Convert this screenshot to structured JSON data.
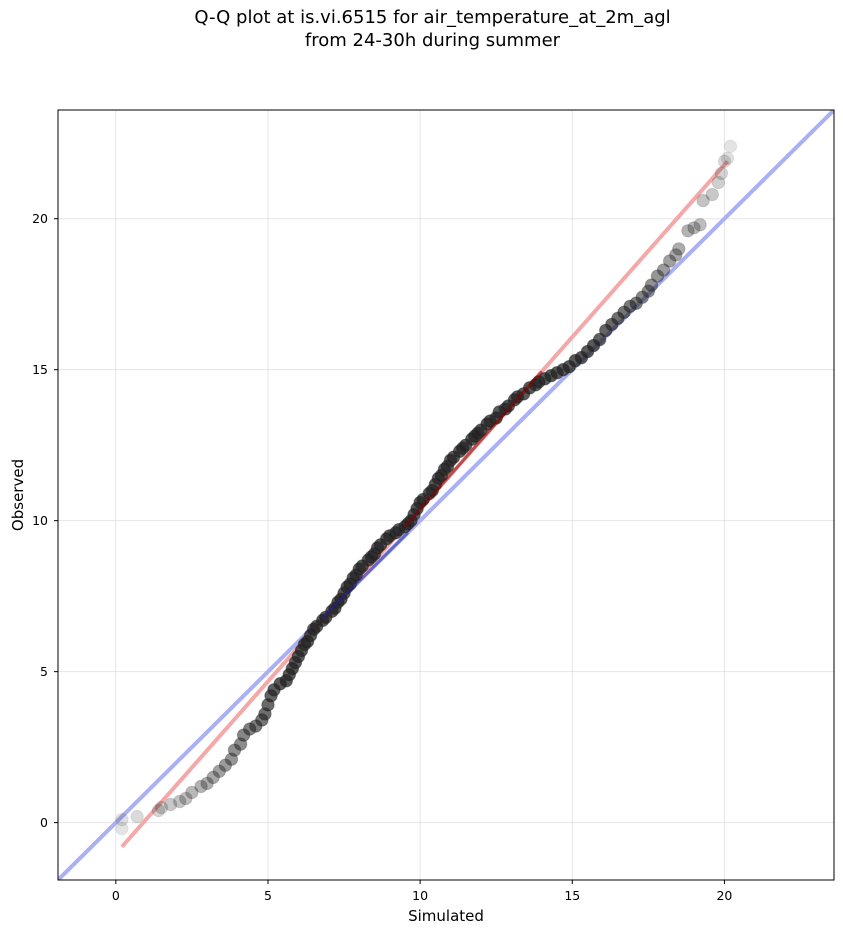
{
  "chart_data": {
    "type": "scatter",
    "title_lines": [
      "Q-Q plot at is.vi.6515 for air_temperature_at_2m_agl",
      "from 24-30h during summer"
    ],
    "xlabel": "Simulated",
    "ylabel": "Observed",
    "xlim": [
      -1.9,
      23.6
    ],
    "ylim": [
      -1.9,
      23.6
    ],
    "xticks": [
      0,
      5,
      10,
      15,
      20
    ],
    "yticks": [
      0,
      5,
      10,
      15,
      20
    ],
    "grid": true,
    "colors": {
      "points": "#222222",
      "identity_line": "#aab0f5",
      "fit_line": "#f5a8a8",
      "fit_line_core": "#8b0000",
      "identity_line_core": "#1f1fa0"
    },
    "reference_lines": [
      {
        "kind": "identity",
        "x": [
          -1.9,
          23.6
        ],
        "y": [
          -1.9,
          23.6
        ]
      },
      {
        "kind": "fit",
        "x": [
          0.2,
          20.1
        ],
        "y": [
          -0.8,
          21.9
        ]
      }
    ],
    "points": [
      [
        0.2,
        -0.2
      ],
      [
        0.2,
        0.1
      ],
      [
        0.7,
        0.2
      ],
      [
        1.4,
        0.4
      ],
      [
        1.5,
        0.5
      ],
      [
        1.8,
        0.6
      ],
      [
        2.1,
        0.7
      ],
      [
        2.3,
        0.8
      ],
      [
        2.5,
        1.0
      ],
      [
        2.8,
        1.2
      ],
      [
        3.0,
        1.3
      ],
      [
        3.2,
        1.5
      ],
      [
        3.4,
        1.7
      ],
      [
        3.6,
        1.9
      ],
      [
        3.8,
        2.1
      ],
      [
        3.9,
        2.4
      ],
      [
        4.1,
        2.6
      ],
      [
        4.2,
        2.9
      ],
      [
        4.4,
        3.1
      ],
      [
        4.6,
        3.2
      ],
      [
        4.8,
        3.4
      ],
      [
        4.9,
        3.6
      ],
      [
        5.0,
        3.9
      ],
      [
        5.1,
        4.2
      ],
      [
        5.2,
        4.4
      ],
      [
        5.4,
        4.6
      ],
      [
        5.6,
        4.7
      ],
      [
        5.7,
        4.9
      ],
      [
        5.8,
        5.1
      ],
      [
        5.9,
        5.3
      ],
      [
        6.0,
        5.5
      ],
      [
        6.1,
        5.7
      ],
      [
        6.2,
        5.9
      ],
      [
        6.3,
        6.0
      ],
      [
        6.4,
        6.2
      ],
      [
        6.5,
        6.4
      ],
      [
        6.6,
        6.5
      ],
      [
        6.8,
        6.7
      ],
      [
        6.9,
        6.8
      ],
      [
        7.1,
        7.0
      ],
      [
        7.2,
        7.1
      ],
      [
        7.3,
        7.3
      ],
      [
        7.4,
        7.4
      ],
      [
        7.5,
        7.6
      ],
      [
        7.6,
        7.8
      ],
      [
        7.7,
        7.9
      ],
      [
        7.8,
        8.1
      ],
      [
        7.9,
        8.2
      ],
      [
        8.0,
        8.4
      ],
      [
        8.1,
        8.5
      ],
      [
        8.3,
        8.7
      ],
      [
        8.4,
        8.8
      ],
      [
        8.5,
        8.9
      ],
      [
        8.6,
        9.1
      ],
      [
        8.7,
        9.2
      ],
      [
        8.9,
        9.4
      ],
      [
        9.0,
        9.5
      ],
      [
        9.2,
        9.6
      ],
      [
        9.3,
        9.7
      ],
      [
        9.5,
        9.8
      ],
      [
        9.6,
        9.9
      ],
      [
        9.7,
        10.0
      ],
      [
        9.8,
        10.2
      ],
      [
        9.9,
        10.4
      ],
      [
        10.0,
        10.6
      ],
      [
        10.1,
        10.7
      ],
      [
        10.3,
        10.9
      ],
      [
        10.4,
        11.0
      ],
      [
        10.5,
        11.2
      ],
      [
        10.6,
        11.4
      ],
      [
        10.7,
        11.5
      ],
      [
        10.8,
        11.7
      ],
      [
        10.9,
        11.8
      ],
      [
        11.0,
        12.0
      ],
      [
        11.1,
        12.1
      ],
      [
        11.3,
        12.3
      ],
      [
        11.4,
        12.4
      ],
      [
        11.5,
        12.5
      ],
      [
        11.7,
        12.7
      ],
      [
        11.8,
        12.8
      ],
      [
        11.9,
        12.9
      ],
      [
        12.0,
        13.0
      ],
      [
        12.2,
        13.2
      ],
      [
        12.3,
        13.3
      ],
      [
        12.5,
        13.4
      ],
      [
        12.6,
        13.6
      ],
      [
        12.8,
        13.7
      ],
      [
        12.9,
        13.8
      ],
      [
        13.1,
        14.0
      ],
      [
        13.2,
        14.1
      ],
      [
        13.4,
        14.2
      ],
      [
        13.6,
        14.4
      ],
      [
        13.8,
        14.5
      ],
      [
        13.9,
        14.6
      ],
      [
        14.1,
        14.7
      ],
      [
        14.3,
        14.8
      ],
      [
        14.5,
        14.9
      ],
      [
        14.7,
        15.0
      ],
      [
        14.9,
        15.1
      ],
      [
        15.1,
        15.3
      ],
      [
        15.3,
        15.4
      ],
      [
        15.5,
        15.6
      ],
      [
        15.7,
        15.8
      ],
      [
        15.9,
        16.0
      ],
      [
        16.1,
        16.3
      ],
      [
        16.3,
        16.5
      ],
      [
        16.5,
        16.7
      ],
      [
        16.7,
        16.9
      ],
      [
        16.9,
        17.1
      ],
      [
        17.1,
        17.2
      ],
      [
        17.3,
        17.4
      ],
      [
        17.5,
        17.6
      ],
      [
        17.6,
        17.8
      ],
      [
        17.8,
        18.1
      ],
      [
        18.0,
        18.3
      ],
      [
        18.2,
        18.6
      ],
      [
        18.4,
        18.8
      ],
      [
        18.5,
        19.0
      ],
      [
        18.8,
        19.6
      ],
      [
        19.0,
        19.7
      ],
      [
        19.2,
        19.8
      ],
      [
        19.3,
        20.6
      ],
      [
        19.6,
        20.8
      ],
      [
        19.8,
        21.2
      ],
      [
        19.9,
        21.5
      ],
      [
        20.0,
        21.9
      ],
      [
        20.1,
        22.0
      ],
      [
        20.2,
        22.4
      ]
    ]
  }
}
